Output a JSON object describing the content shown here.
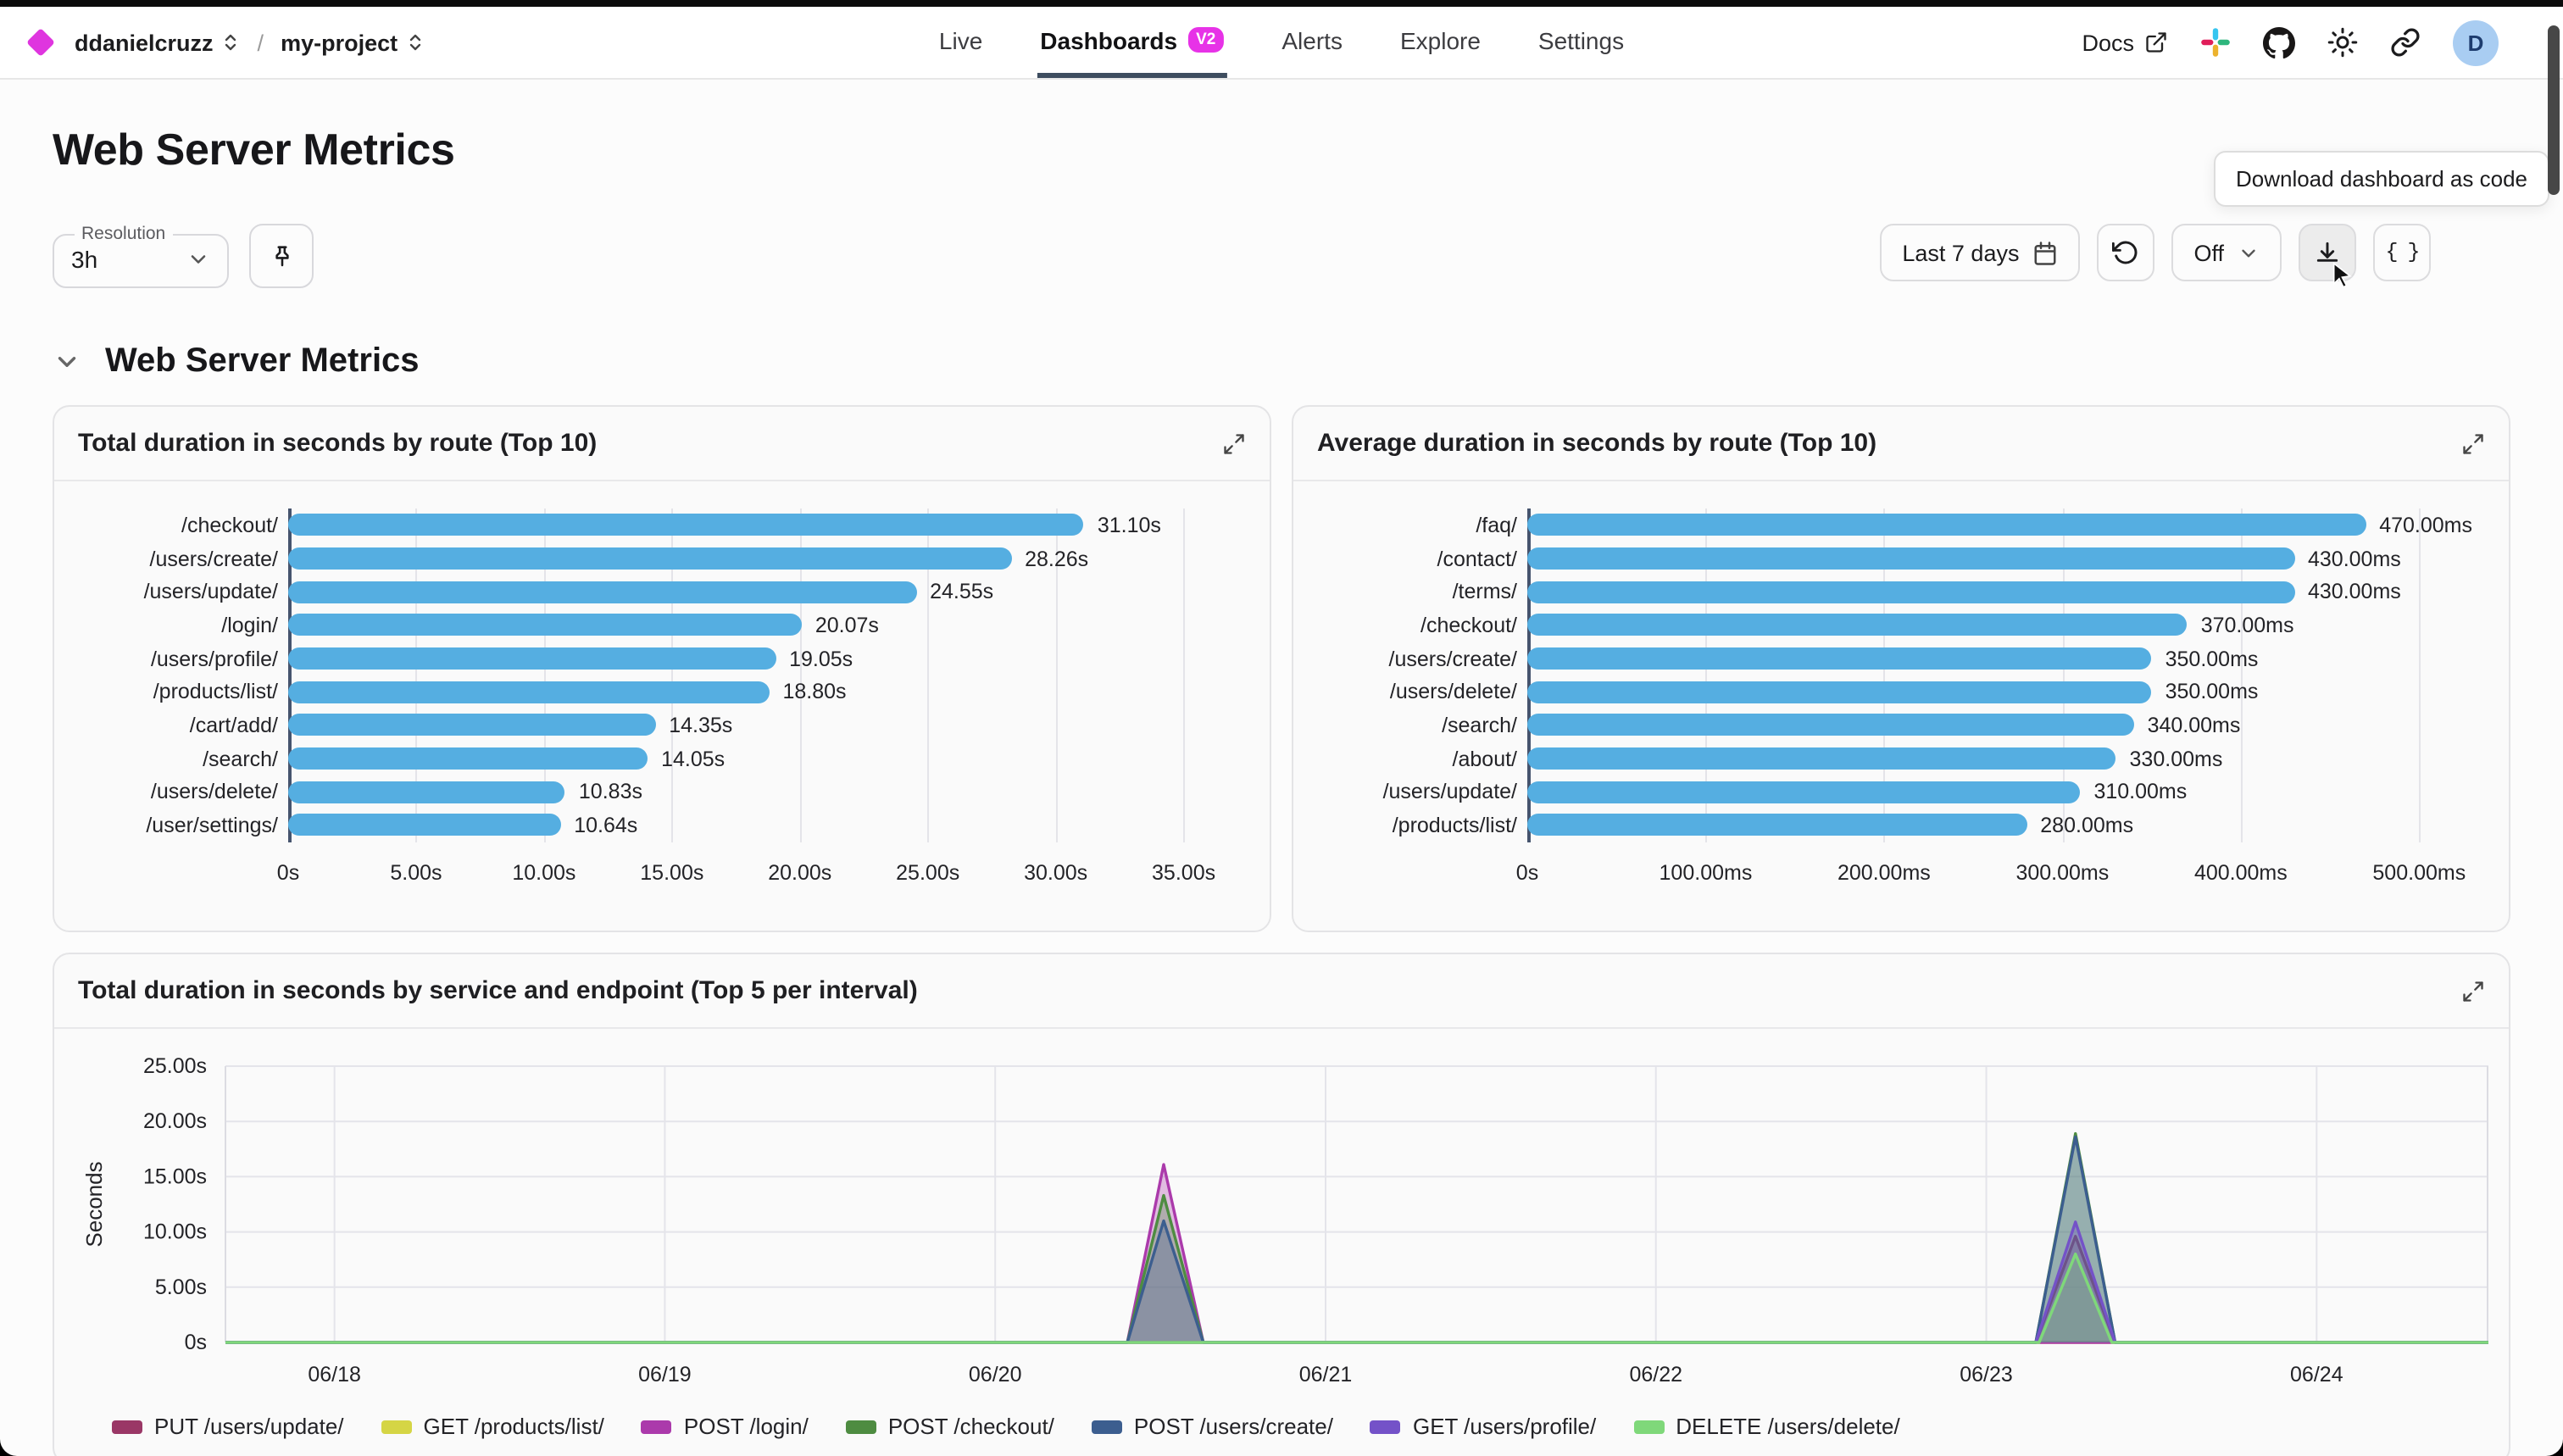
{
  "header": {
    "org": "ddanielcruzz",
    "project": "my-project",
    "breadcrumb_separator": "/",
    "nav": [
      {
        "label": "Live",
        "active": false
      },
      {
        "label": "Dashboards",
        "badge": "V2",
        "active": true
      },
      {
        "label": "Alerts",
        "active": false
      },
      {
        "label": "Explore",
        "active": false
      },
      {
        "label": "Settings",
        "active": false
      }
    ],
    "docs_label": "Docs",
    "avatar_letter": "D"
  },
  "page": {
    "title": "Web Server Metrics",
    "resolution_label": "Resolution",
    "resolution_value": "3h",
    "time_range": "Last 7 days",
    "refresh_value": "Off",
    "tooltip": "Download dashboard as code",
    "code_button_label": "{ }",
    "section_title": "Web Server Metrics"
  },
  "colors": {
    "bar_blue": "#55aee1",
    "badge_magenta": "#e732e7",
    "logo_magenta": "#df35df",
    "nav_underline": "#3e4d5f",
    "avatar_bg": "#a9cdf2"
  },
  "chart_data": [
    {
      "type": "bar",
      "title": "Total duration in seconds by route (Top 10)",
      "categories": [
        "/checkout/",
        "/users/create/",
        "/users/update/",
        "/login/",
        "/users/profile/",
        "/products/list/",
        "/cart/add/",
        "/search/",
        "/users/delete/",
        "/user/settings/"
      ],
      "values": [
        31.1,
        28.26,
        24.55,
        20.07,
        19.05,
        18.8,
        14.35,
        14.05,
        10.83,
        10.64
      ],
      "value_labels": [
        "31.10s",
        "28.26s",
        "24.55s",
        "20.07s",
        "19.05s",
        "18.80s",
        "14.35s",
        "14.05s",
        "10.83s",
        "10.64s"
      ],
      "x_ticks": [
        {
          "value": 0,
          "label": "0s"
        },
        {
          "value": 5,
          "label": "5.00s"
        },
        {
          "value": 10,
          "label": "10.00s"
        },
        {
          "value": 15,
          "label": "15.00s"
        },
        {
          "value": 20,
          "label": "20.00s"
        },
        {
          "value": 25,
          "label": "25.00s"
        },
        {
          "value": 30,
          "label": "30.00s"
        },
        {
          "value": 35,
          "label": "35.00s"
        }
      ],
      "axis_max": 37.3,
      "bar_color": "#55aee1"
    },
    {
      "type": "bar",
      "title": "Average duration in seconds by route (Top 10)",
      "categories": [
        "/faq/",
        "/contact/",
        "/terms/",
        "/checkout/",
        "/users/create/",
        "/users/delete/",
        "/search/",
        "/about/",
        "/users/update/",
        "/products/list/"
      ],
      "values": [
        470,
        430,
        430,
        370,
        350,
        350,
        340,
        330,
        310,
        280
      ],
      "value_labels": [
        "470.00ms",
        "430.00ms",
        "430.00ms",
        "370.00ms",
        "350.00ms",
        "350.00ms",
        "340.00ms",
        "330.00ms",
        "310.00ms",
        "280.00ms"
      ],
      "x_ticks": [
        {
          "value": 0,
          "label": "0s"
        },
        {
          "value": 100,
          "label": "100.00ms"
        },
        {
          "value": 200,
          "label": "200.00ms"
        },
        {
          "value": 300,
          "label": "300.00ms"
        },
        {
          "value": 400,
          "label": "400.00ms"
        },
        {
          "value": 500,
          "label": "500.00ms"
        }
      ],
      "axis_max": 535,
      "bar_color": "#55aee1"
    },
    {
      "type": "area",
      "title": "Total duration in seconds by service and endpoint (Top 5 per interval)",
      "ylabel": "Seconds",
      "ylim": [
        0,
        25
      ],
      "y_ticks": [
        {
          "value": 0,
          "label": "0s"
        },
        {
          "value": 5,
          "label": "5.00s"
        },
        {
          "value": 10,
          "label": "10.00s"
        },
        {
          "value": 15,
          "label": "15.00s"
        },
        {
          "value": 20,
          "label": "20.00s"
        },
        {
          "value": 25,
          "label": "25.00s"
        }
      ],
      "xlim": [
        17.67,
        24.52
      ],
      "x_ticks": [
        {
          "value": 18,
          "label": "06/18"
        },
        {
          "value": 19,
          "label": "06/19"
        },
        {
          "value": 20,
          "label": "06/20"
        },
        {
          "value": 21,
          "label": "06/21"
        },
        {
          "value": 22,
          "label": "06/22"
        },
        {
          "value": 23,
          "label": "06/23"
        },
        {
          "value": 24,
          "label": "06/24"
        }
      ],
      "series": [
        {
          "name": "PUT /users/update/",
          "color": "#9a3766",
          "points": [
            [
              17.67,
              0
            ],
            [
              23.15,
              0
            ],
            [
              23.27,
              9.6
            ],
            [
              23.39,
              0
            ],
            [
              24.52,
              0
            ]
          ]
        },
        {
          "name": "GET /products/list/",
          "color": "#d5d545",
          "points": [
            [
              17.67,
              0
            ],
            [
              24.52,
              0
            ]
          ]
        },
        {
          "name": "POST /login/",
          "color": "#ab3aab",
          "points": [
            [
              17.67,
              0
            ],
            [
              20.4,
              0
            ],
            [
              20.51,
              16.1
            ],
            [
              20.63,
              0
            ],
            [
              24.52,
              0
            ]
          ]
        },
        {
          "name": "POST /checkout/",
          "color": "#4e8c41",
          "points": [
            [
              17.67,
              0
            ],
            [
              20.4,
              0
            ],
            [
              20.51,
              13.3
            ],
            [
              20.63,
              0
            ],
            [
              23.15,
              0
            ],
            [
              23.27,
              18.9
            ],
            [
              23.39,
              0
            ],
            [
              24.52,
              0
            ]
          ]
        },
        {
          "name": "POST /users/create/",
          "color": "#3c5e8f",
          "points": [
            [
              17.67,
              0
            ],
            [
              20.4,
              0
            ],
            [
              20.51,
              11.0
            ],
            [
              20.63,
              0
            ],
            [
              23.15,
              0
            ],
            [
              23.27,
              18.6
            ],
            [
              23.39,
              0
            ],
            [
              24.52,
              0
            ]
          ]
        },
        {
          "name": "GET /users/profile/",
          "color": "#7452c8",
          "points": [
            [
              17.67,
              0
            ],
            [
              23.15,
              0
            ],
            [
              23.27,
              10.9
            ],
            [
              23.39,
              0
            ],
            [
              24.52,
              0
            ]
          ]
        },
        {
          "name": "DELETE /users/delete/",
          "color": "#7fd87a",
          "points": [
            [
              17.67,
              0
            ],
            [
              23.16,
              0
            ],
            [
              23.27,
              8.0
            ],
            [
              23.38,
              0
            ],
            [
              24.52,
              0
            ]
          ]
        }
      ]
    }
  ]
}
